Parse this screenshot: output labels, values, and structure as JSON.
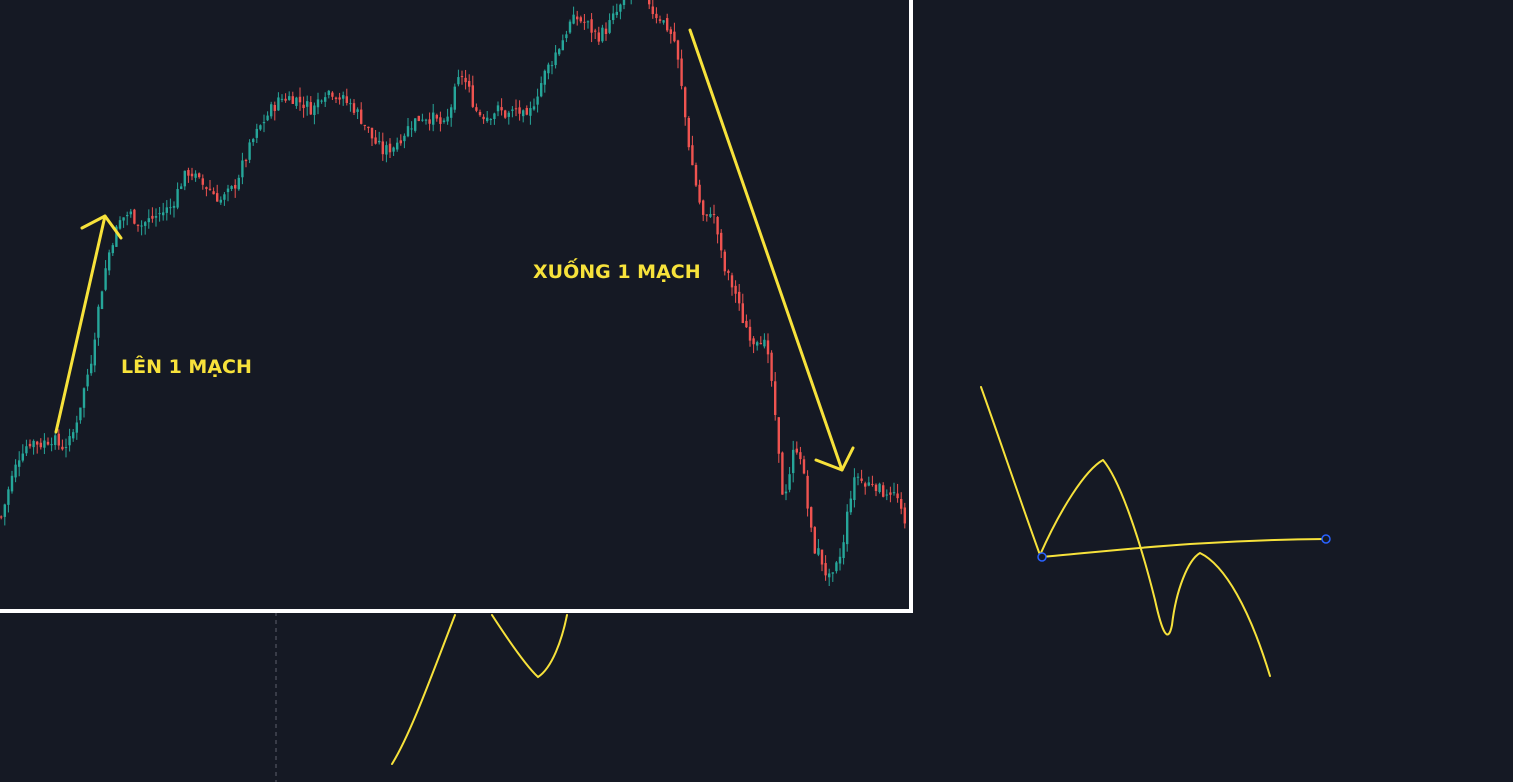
{
  "colors": {
    "background": "#151924",
    "frame": "#ffffff",
    "up": "#26a69a",
    "down": "#ef5350",
    "drawing": "#f7e23b",
    "anchor": "#2962ff",
    "crosshair": "#5d606b"
  },
  "annotations": {
    "up_label": "LÊN 1 MẠCH",
    "down_label": "XUỐNG 1 MẠCH"
  },
  "chart_data": {
    "type": "candlestick",
    "title": "",
    "xlabel": "",
    "ylabel": "",
    "ylim": [
      0,
      100
    ],
    "close_path": [
      [
        0,
        15
      ],
      [
        10,
        21
      ],
      [
        20,
        26
      ],
      [
        30,
        27.5
      ],
      [
        40,
        27
      ],
      [
        50,
        28
      ],
      [
        60,
        26.5
      ],
      [
        70,
        27.5
      ],
      [
        80,
        34
      ],
      [
        90,
        41
      ],
      [
        96,
        48
      ],
      [
        102,
        54
      ],
      [
        110,
        60
      ],
      [
        120,
        64
      ],
      [
        128,
        65
      ],
      [
        140,
        63
      ],
      [
        150,
        64
      ],
      [
        160,
        65
      ],
      [
        170,
        66
      ],
      [
        180,
        70
      ],
      [
        188,
        72
      ],
      [
        198,
        70
      ],
      [
        208,
        69
      ],
      [
        220,
        67
      ],
      [
        232,
        69
      ],
      [
        242,
        73
      ],
      [
        252,
        77
      ],
      [
        262,
        80
      ],
      [
        272,
        82.5
      ],
      [
        282,
        84
      ],
      [
        292,
        84
      ],
      [
        302,
        83
      ],
      [
        312,
        82
      ],
      [
        322,
        85
      ],
      [
        332,
        85
      ],
      [
        342,
        83.5
      ],
      [
        352,
        82.5
      ],
      [
        362,
        80
      ],
      [
        372,
        77
      ],
      [
        382,
        75
      ],
      [
        392,
        76
      ],
      [
        402,
        78
      ],
      [
        412,
        80
      ],
      [
        422,
        81
      ],
      [
        432,
        80.5
      ],
      [
        444,
        79
      ],
      [
        454,
        85
      ],
      [
        460,
        88
      ],
      [
        468,
        85
      ],
      [
        476,
        81.5
      ],
      [
        486,
        81
      ],
      [
        496,
        82
      ],
      [
        506,
        81
      ],
      [
        516,
        82
      ],
      [
        526,
        80
      ],
      [
        534,
        84
      ],
      [
        544,
        88
      ],
      [
        552,
        90.5
      ],
      [
        560,
        93
      ],
      [
        568,
        96
      ],
      [
        576,
        97
      ],
      [
        586,
        96
      ],
      [
        596,
        94
      ],
      [
        604,
        95
      ],
      [
        612,
        97
      ],
      [
        620,
        99
      ],
      [
        628,
        101
      ],
      [
        636,
        102
      ],
      [
        644,
        101.5
      ],
      [
        652,
        98
      ],
      [
        660,
        97
      ],
      [
        668,
        95
      ],
      [
        674,
        93
      ],
      [
        680,
        86
      ],
      [
        686,
        78
      ],
      [
        692,
        72
      ],
      [
        698,
        67
      ],
      [
        704,
        63
      ],
      [
        710,
        66
      ],
      [
        716,
        62
      ],
      [
        722,
        56
      ],
      [
        728,
        54
      ],
      [
        734,
        52
      ],
      [
        740,
        48
      ],
      [
        746,
        46
      ],
      [
        752,
        44
      ],
      [
        758,
        45
      ],
      [
        764,
        43
      ],
      [
        770,
        38
      ],
      [
        776,
        27
      ],
      [
        782,
        18
      ],
      [
        788,
        22
      ],
      [
        794,
        27
      ],
      [
        800,
        25
      ],
      [
        806,
        17
      ],
      [
        812,
        10
      ],
      [
        818,
        9
      ],
      [
        824,
        6
      ],
      [
        830,
        4
      ],
      [
        836,
        7
      ],
      [
        842,
        10
      ],
      [
        848,
        18
      ],
      [
        856,
        22
      ],
      [
        864,
        20
      ],
      [
        872,
        21
      ],
      [
        880,
        19
      ],
      [
        888,
        19.5
      ],
      [
        896,
        18
      ],
      [
        902,
        14
      ],
      [
        908,
        12
      ]
    ]
  }
}
